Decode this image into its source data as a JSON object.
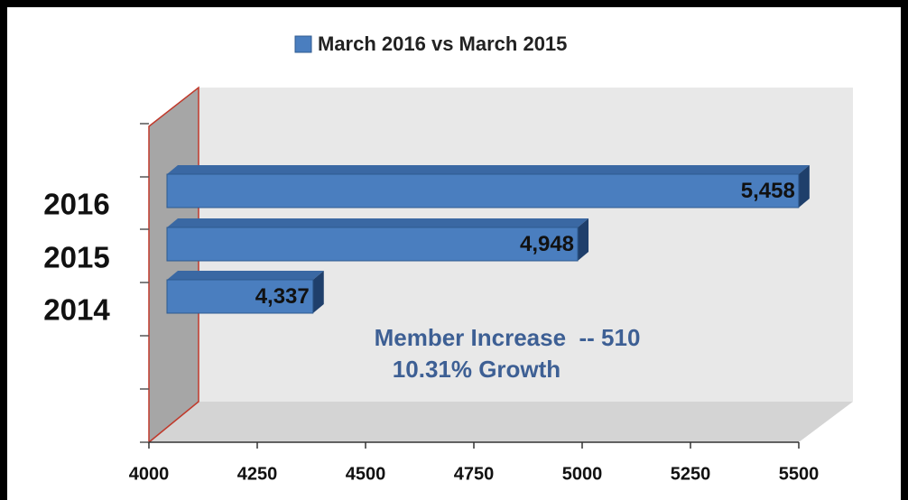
{
  "chart_data": {
    "type": "bar",
    "orientation": "horizontal",
    "categories": [
      "2016",
      "2015",
      "2014"
    ],
    "series": [
      {
        "name": "March 2016 vs March 2015",
        "color": "#4a7ebf",
        "values": [
          5458,
          4948,
          4337
        ],
        "value_labels": [
          "5,458",
          "4,948",
          "4,337"
        ]
      }
    ],
    "xlim": [
      4000,
      5500
    ],
    "xticks": [
      4000,
      4250,
      4500,
      4750,
      5000,
      5250,
      5500
    ],
    "annotations": [
      "Member Increase  -- 510",
      "10.31% Growth"
    ],
    "legend": "top"
  }
}
